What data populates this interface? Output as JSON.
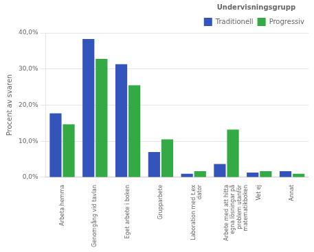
{
  "chart_data": {
    "type": "bar",
    "categories": [
      "Arbeta hemma",
      "Genomgång vid tavlan",
      "Eget arbete i boken",
      "Grupparbete",
      "Laboration med t.ex\ndator",
      "Arbete med att hitta\negna lösningar på\nproblem utanför\nmatematikboken",
      "Vet ej",
      "Annat"
    ],
    "series": [
      {
        "name": "Traditionell",
        "color": "#3355BB",
        "values": [
          17.7,
          38.3,
          31.3,
          7.0,
          1.0,
          3.7,
          1.3,
          1.7
        ]
      },
      {
        "name": "Progressiv",
        "color": "#33AA44",
        "values": [
          14.7,
          32.8,
          25.5,
          10.5,
          1.7,
          13.2,
          1.7,
          1.0
        ]
      }
    ],
    "ylabel": "Procent av svaren",
    "legend_title": "Undervisningsgrupp",
    "ylim": [
      0,
      40
    ],
    "yticks": [
      {
        "value": 0,
        "label": "0,0%"
      },
      {
        "value": 10,
        "label": "10,0%"
      },
      {
        "value": 20,
        "label": "20,0%"
      },
      {
        "value": 30,
        "label": "30,0%"
      },
      {
        "value": 40,
        "label": "40,0%"
      }
    ],
    "grid": true,
    "legend": "upper right"
  }
}
